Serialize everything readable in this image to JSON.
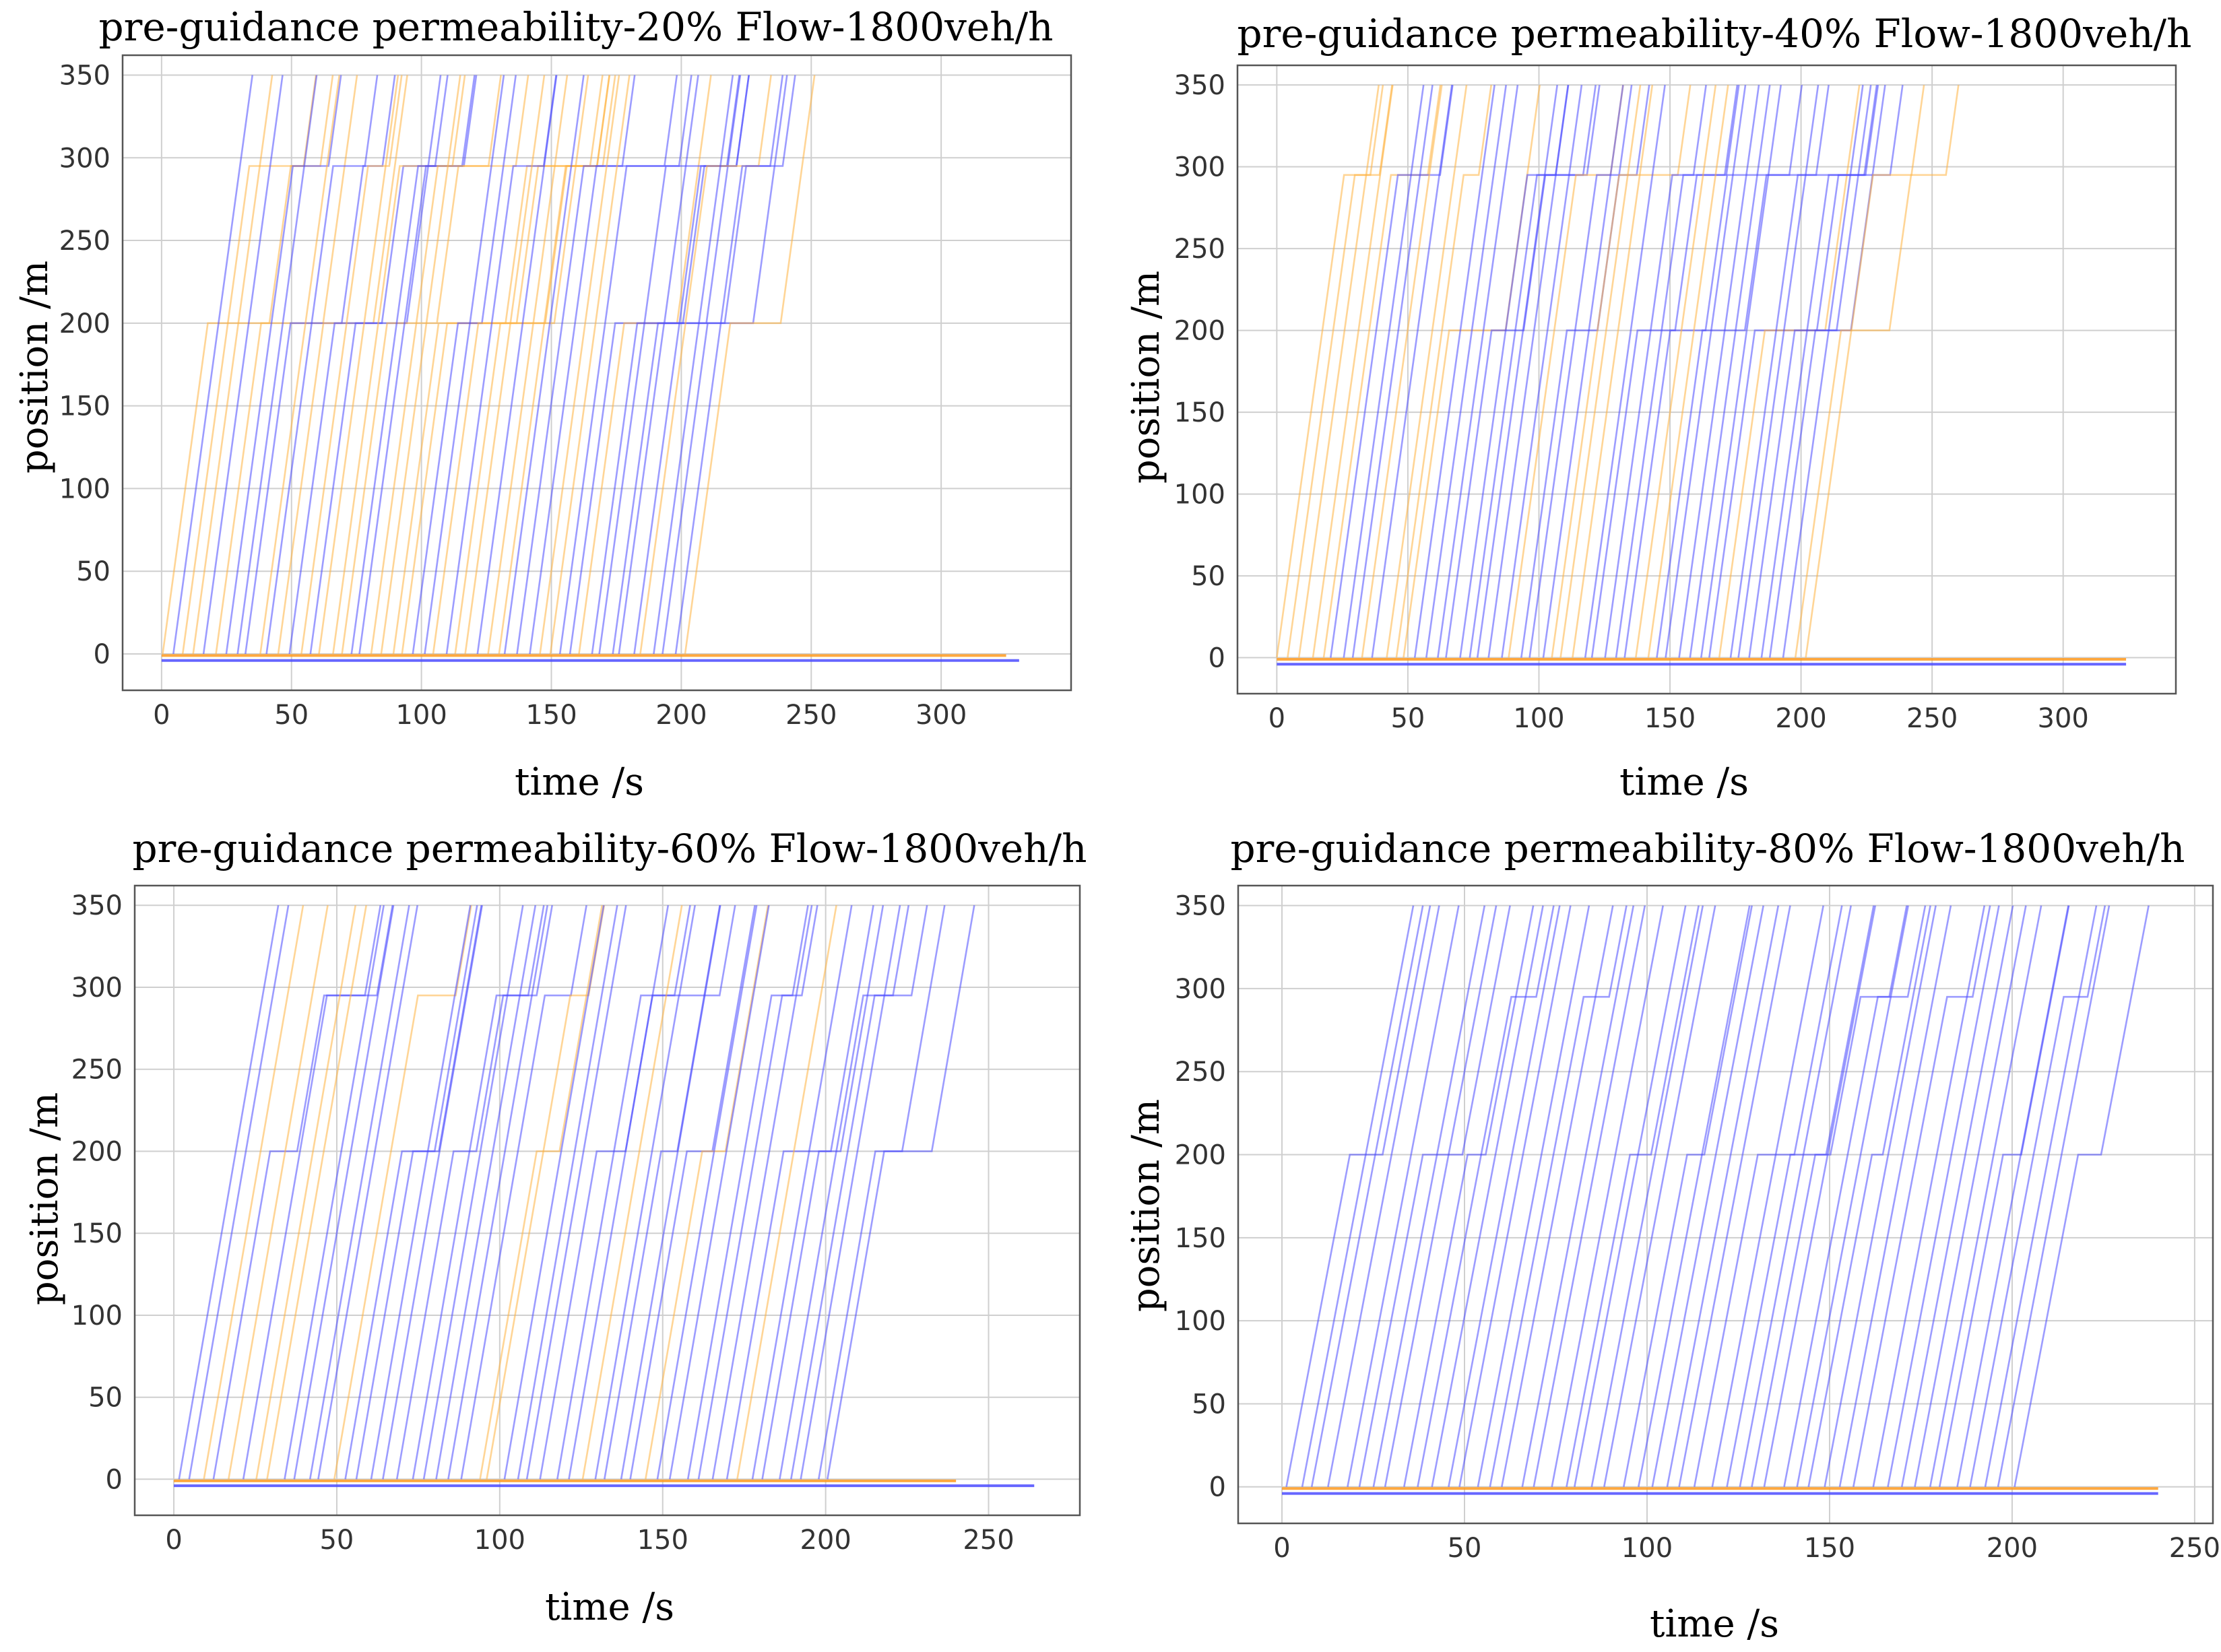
{
  "chart_data": [
    {
      "type": "line",
      "title": "pre-guidance permeability-20% Flow-1800veh/h",
      "xlabel": "time /s",
      "ylabel": "position /m",
      "xlim": [
        -15,
        350
      ],
      "ylim": [
        -22,
        362
      ],
      "xticks": [
        0,
        50,
        100,
        150,
        200,
        250,
        300
      ],
      "yticks": [
        0,
        50,
        100,
        150,
        200,
        250,
        300,
        350
      ],
      "grid": true,
      "series_colors": {
        "guided": "#4b4bff",
        "unguided": "#ffb340"
      },
      "start_times": [
        0,
        4,
        8,
        12,
        16,
        20,
        24,
        28,
        32,
        36,
        40,
        44,
        48,
        52,
        56,
        60,
        64,
        68,
        72,
        76,
        80,
        84,
        88,
        92,
        96,
        100,
        104,
        108,
        112,
        116,
        120,
        124,
        128,
        132,
        136,
        140,
        144,
        148,
        152,
        156,
        160,
        164,
        168,
        172,
        176,
        180,
        184,
        188,
        192,
        196,
        200
      ],
      "baseline_end_times": {
        "guided": 330,
        "unguided": 325
      }
    },
    {
      "type": "line",
      "title": "pre-guidance permeability-40% Flow-1800veh/h",
      "xlabel": "time /s",
      "ylabel": "position /m",
      "xlim": [
        -15,
        343
      ],
      "ylim": [
        -22,
        362
      ],
      "xticks": [
        0,
        50,
        100,
        150,
        200,
        250,
        300
      ],
      "yticks": [
        0,
        50,
        100,
        150,
        200,
        250,
        300,
        350
      ],
      "grid": true,
      "series_colors": {
        "guided": "#4b4bff",
        "unguided": "#ffb340"
      },
      "start_times": [
        0,
        4,
        8,
        12,
        16,
        20,
        24,
        28,
        32,
        36,
        40,
        44,
        48,
        52,
        56,
        60,
        64,
        68,
        72,
        76,
        80,
        84,
        88,
        92,
        96,
        100,
        104,
        108,
        112,
        116,
        120,
        124,
        128,
        132,
        136,
        140,
        144,
        148,
        152,
        156,
        160,
        164,
        168,
        172,
        176,
        180,
        184,
        188,
        192,
        196,
        200
      ],
      "baseline_end_times": {
        "guided": 324,
        "unguided": 324
      }
    },
    {
      "type": "line",
      "title": "pre-guidance permeability-60% Flow-1800veh/h",
      "xlabel": "time /s",
      "ylabel": "position /m",
      "xlim": [
        -12,
        278
      ],
      "ylim": [
        -22,
        362
      ],
      "xticks": [
        0,
        50,
        100,
        150,
        200,
        250
      ],
      "yticks": [
        0,
        50,
        100,
        150,
        200,
        250,
        300,
        350
      ],
      "grid": true,
      "series_colors": {
        "guided": "#4b4bff",
        "unguided": "#ffb340"
      },
      "start_times": [
        0,
        4,
        8,
        12,
        16,
        20,
        24,
        28,
        32,
        36,
        40,
        44,
        48,
        52,
        56,
        60,
        64,
        68,
        72,
        76,
        80,
        84,
        88,
        92,
        96,
        100,
        104,
        108,
        112,
        116,
        120,
        124,
        128,
        132,
        136,
        140,
        144,
        148,
        152,
        156,
        160,
        164,
        168,
        172,
        176,
        180,
        184,
        188,
        192,
        196,
        200
      ],
      "baseline_end_times": {
        "guided": 264,
        "unguided": 240
      }
    },
    {
      "type": "line",
      "title": "pre-guidance permeability-80% Flow-1800veh/h",
      "xlabel": "time /s",
      "ylabel": "position /m",
      "xlim": [
        -12,
        255
      ],
      "ylim": [
        -22,
        362
      ],
      "xticks": [
        0,
        50,
        100,
        150,
        200,
        250
      ],
      "yticks": [
        0,
        50,
        100,
        150,
        200,
        250,
        300,
        350
      ],
      "grid": true,
      "series_colors": {
        "guided": "#4b4bff",
        "unguided": "#ffb340"
      },
      "start_times": [
        0,
        4,
        8,
        12,
        16,
        20,
        24,
        28,
        32,
        36,
        40,
        44,
        48,
        52,
        56,
        60,
        64,
        68,
        72,
        76,
        80,
        84,
        88,
        92,
        96,
        100,
        104,
        108,
        112,
        116,
        120,
        124,
        128,
        132,
        136,
        140,
        144,
        148,
        152,
        156,
        160,
        164,
        168,
        172,
        176,
        180,
        184,
        188,
        192,
        196,
        200
      ],
      "baseline_end_times": {
        "guided": 240,
        "unguided": 240
      }
    }
  ]
}
